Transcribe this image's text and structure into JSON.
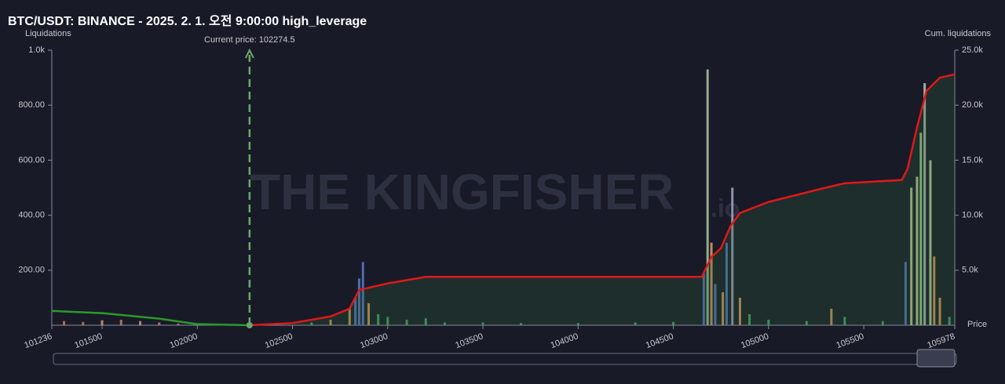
{
  "chart_data": {
    "type": "bar",
    "title": "BTC/USDT: BINANCE - 2025. 2. 1. 오전 9:00:00 high_leverage",
    "annotation": "Current price: 102274.5",
    "current_price": 102274.5,
    "ylabel": "Liquidations",
    "y2label": "Cum. liquidations",
    "xlabel": "Price",
    "watermark": "THE KINGFISHER",
    "watermark_suffix": ".io",
    "xlim": [
      101236,
      105978
    ],
    "xticks": [
      101236,
      101500,
      102000,
      102500,
      103000,
      103500,
      104000,
      104500,
      105000,
      105500,
      105978
    ],
    "ylim": [
      0,
      1000
    ],
    "yticks": [
      {
        "value": 200,
        "label": "200.00"
      },
      {
        "value": 400,
        "label": "400.00"
      },
      {
        "value": 600,
        "label": "600.00"
      },
      {
        "value": 800,
        "label": "800.00"
      },
      {
        "value": 1000,
        "label": "1.0k"
      }
    ],
    "y2lim": [
      0,
      25000
    ],
    "y2ticks": [
      {
        "value": 5000,
        "label": "5.0k"
      },
      {
        "value": 10000,
        "label": "10.0k"
      },
      {
        "value": 15000,
        "label": "15.0k"
      },
      {
        "value": 20000,
        "label": "20.0k"
      },
      {
        "value": 25000,
        "label": "25.0k"
      }
    ],
    "series": [
      {
        "type": "bar",
        "x": [
          101300,
          101400,
          101500,
          101600,
          101700,
          101800,
          101900,
          102600,
          102700,
          102800,
          102830,
          102850,
          102870,
          102900,
          102950,
          103000,
          103100,
          103200,
          103300,
          103500,
          103700,
          104000,
          104300,
          104500,
          104660,
          104680,
          104700,
          104720,
          104760,
          104780,
          104810,
          104850,
          104900,
          105000,
          105200,
          105330,
          105400,
          105600,
          105720,
          105750,
          105780,
          105800,
          105820,
          105850,
          105870,
          105900,
          105950
        ],
        "values": [
          15,
          12,
          18,
          20,
          15,
          10,
          6,
          10,
          20,
          60,
          100,
          170,
          230,
          80,
          40,
          30,
          20,
          25,
          10,
          10,
          8,
          8,
          10,
          12,
          190,
          930,
          300,
          150,
          120,
          300,
          500,
          100,
          40,
          20,
          15,
          60,
          30,
          15,
          230,
          500,
          540,
          700,
          880,
          600,
          250,
          100,
          30
        ],
        "colors": [
          "#c08060",
          "#c08060",
          "#d09a70",
          "#c08060",
          "#d09a70",
          "#c08060",
          "#c08060",
          "#4caf6a",
          "#e0a060",
          "#e0a060",
          "#5a7ac8",
          "#5a7ac8",
          "#5a7ac8",
          "#e0a060",
          "#4caf6a",
          "#4caf6a",
          "#4caf6a",
          "#4caf6a",
          "#4caf6a",
          "#4caf6a",
          "#4caf6a",
          "#4caf6a",
          "#4caf6a",
          "#4caf6a",
          "#5a7ac8",
          "#a8c8a0",
          "#e0a060",
          "#5a7ac8",
          "#e0a060",
          "#5a7ac8",
          "#a8a8c8",
          "#e0a060",
          "#4caf6a",
          "#4caf6a",
          "#4caf6a",
          "#e0a060",
          "#4caf6a",
          "#4caf6a",
          "#5a7ac8",
          "#c8d8a0",
          "#c8d8a0",
          "#a8d890",
          "#b8c8b8",
          "#c8d8a0",
          "#e0a060",
          "#e0a060",
          "#4caf6a"
        ]
      },
      {
        "type": "line",
        "axis": "y2",
        "color": "#e01818",
        "area": true,
        "x": [
          102274,
          102500,
          102700,
          102800,
          102850,
          103000,
          103200,
          104650,
          104680,
          104700,
          104750,
          104800,
          104850,
          105000,
          105300,
          105400,
          105700,
          105730,
          105780,
          105830,
          105900,
          105978
        ],
        "values": [
          0,
          200,
          800,
          1500,
          3200,
          3800,
          4400,
          4400,
          5500,
          6200,
          7000,
          9000,
          10200,
          11200,
          12500,
          12900,
          13200,
          14200,
          18000,
          21300,
          22500,
          22800
        ]
      },
      {
        "type": "line",
        "axis": "y2",
        "color": "#2a9a2a",
        "area": false,
        "x": [
          101236,
          101500,
          101800,
          102000,
          102274
        ],
        "values": [
          1300,
          1100,
          600,
          100,
          0
        ]
      }
    ]
  }
}
